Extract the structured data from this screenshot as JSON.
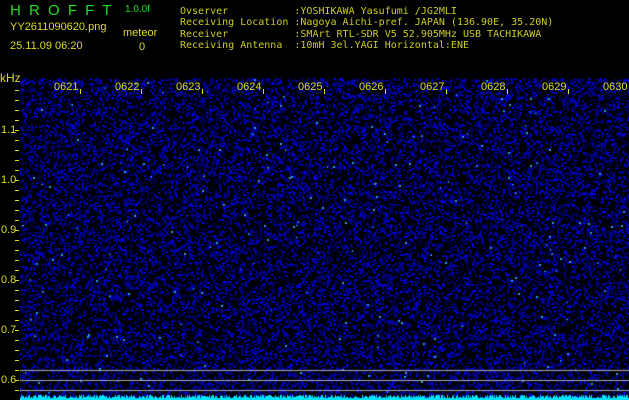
{
  "header": {
    "app_title": "H R O F F T",
    "version": "1.0.0f",
    "filename": "YY2611090620.png",
    "datetime": "25.11.09 06:20",
    "meteor_label": "meteor",
    "meteor_count": "0",
    "info": [
      "Ovserver           :YOSHIKAWA Yasufumi /JG2MLI",
      "Receiving Location :Nagoya Aichi-pref. JAPAN (136.90E, 35.20N)",
      "Receiver           :SMArt RTL-SDR V5 52.905MHz USB TACHIKAWA",
      "Receiving Antenna  :10mH 3el.YAGI Horizontal:ENE"
    ]
  },
  "plot": {
    "y_unit": "kHz",
    "y_ticks": [
      "1.1",
      "1.0",
      "0.9",
      "0.8",
      "0.7",
      "0.6"
    ],
    "time_labels": [
      "0621",
      "0622",
      "0623",
      "0624",
      "0625",
      "0626",
      "0627",
      "0628",
      "0629",
      "0630"
    ],
    "colors": {
      "background": "#000000",
      "noise": "#2020c0",
      "baseline": "#00e5ff",
      "ref_lines": "#aaaaaa",
      "text": "#dddd22"
    }
  }
}
